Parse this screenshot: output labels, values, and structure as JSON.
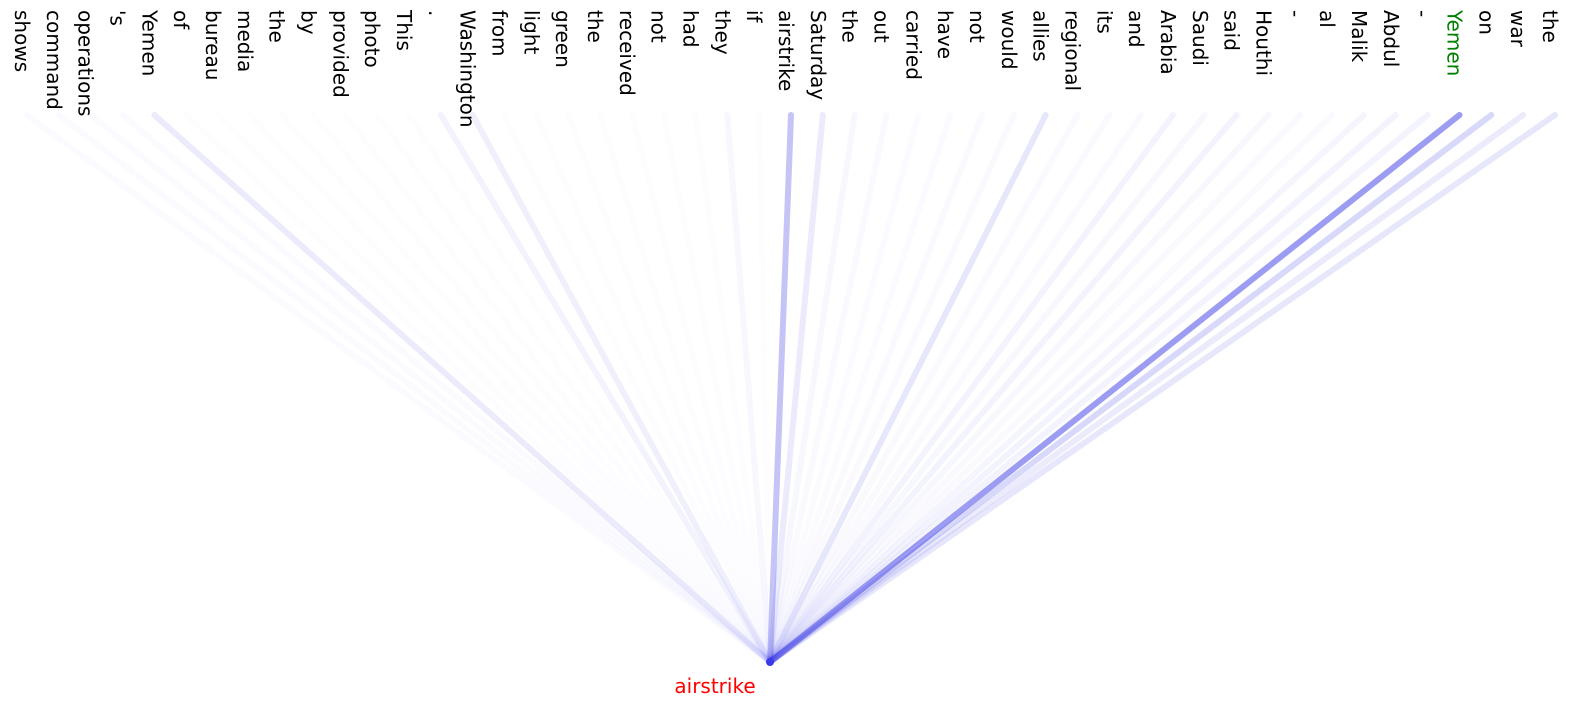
{
  "target": {
    "text": "airstrike"
  },
  "highlight_index": 45,
  "tokens": [
    {
      "text": "shows",
      "weight": 0.02
    },
    {
      "text": "command",
      "weight": 0.02
    },
    {
      "text": "operations",
      "weight": 0.02
    },
    {
      "text": "'s",
      "weight": 0.02
    },
    {
      "text": "Yemen",
      "weight": 0.1
    },
    {
      "text": "of",
      "weight": 0.01
    },
    {
      "text": "bureau",
      "weight": 0.01
    },
    {
      "text": "media",
      "weight": 0.01
    },
    {
      "text": "the",
      "weight": 0.01
    },
    {
      "text": "by",
      "weight": 0.01
    },
    {
      "text": "provided",
      "weight": 0.01
    },
    {
      "text": "photo",
      "weight": 0.01
    },
    {
      "text": "This",
      "weight": 0.01
    },
    {
      "text": ".",
      "weight": 0.06
    },
    {
      "text": "Washington",
      "weight": 0.08
    },
    {
      "text": "from",
      "weight": 0.01
    },
    {
      "text": "light",
      "weight": 0.01
    },
    {
      "text": "green",
      "weight": 0.01
    },
    {
      "text": "the",
      "weight": 0.01
    },
    {
      "text": "received",
      "weight": 0.01
    },
    {
      "text": "not",
      "weight": 0.01
    },
    {
      "text": "had",
      "weight": 0.01
    },
    {
      "text": "they",
      "weight": 0.04
    },
    {
      "text": "if",
      "weight": 0.01
    },
    {
      "text": "airstrike",
      "weight": 0.3
    },
    {
      "text": "Saturday",
      "weight": 0.1
    },
    {
      "text": "the",
      "weight": 0.04
    },
    {
      "text": "out",
      "weight": 0.03
    },
    {
      "text": "carried",
      "weight": 0.02
    },
    {
      "text": "have",
      "weight": 0.02
    },
    {
      "text": "not",
      "weight": 0.03
    },
    {
      "text": "would",
      "weight": 0.03
    },
    {
      "text": "allies",
      "weight": 0.12
    },
    {
      "text": "regional",
      "weight": 0.03
    },
    {
      "text": "its",
      "weight": 0.03
    },
    {
      "text": "and",
      "weight": 0.03
    },
    {
      "text": "Arabia",
      "weight": 0.06
    },
    {
      "text": "Saudi",
      "weight": 0.04
    },
    {
      "text": "said",
      "weight": 0.06
    },
    {
      "text": "Houthi",
      "weight": 0.04
    },
    {
      "text": "-",
      "weight": 0.03
    },
    {
      "text": "al",
      "weight": 0.03
    },
    {
      "text": "Malik",
      "weight": 0.05
    },
    {
      "text": "Abdul",
      "weight": 0.06
    },
    {
      "text": "-",
      "weight": 0.06
    },
    {
      "text": "Yemen",
      "weight": 0.5
    },
    {
      "text": "on",
      "weight": 0.2
    },
    {
      "text": "war",
      "weight": 0.1
    },
    {
      "text": "the",
      "weight": 0.12
    }
  ]
}
